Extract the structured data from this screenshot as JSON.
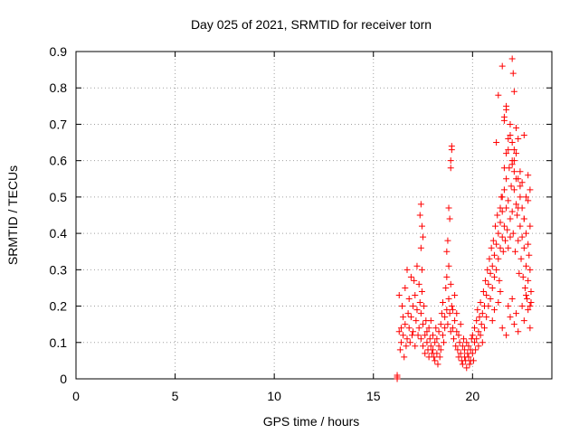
{
  "chart_data": {
    "type": "scatter",
    "title": "Day 025 of 2021, SRMTID for receiver torn",
    "xlabel": "GPS time / hours",
    "ylabel": "SRMTID / TECUs",
    "xlim": [
      0,
      24
    ],
    "ylim": [
      0,
      0.9
    ],
    "xticks": [
      0,
      5,
      10,
      15,
      20
    ],
    "yticks": [
      0,
      0.1,
      0.2,
      0.3,
      0.4,
      0.5,
      0.6,
      0.7,
      0.8,
      0.9
    ],
    "grid": true,
    "marker": "+",
    "color": "#ff0000",
    "series": [
      {
        "name": "SRMTID",
        "x": [
          16.2,
          16.2,
          16.2,
          16.3,
          16.3,
          16.35,
          16.4,
          16.4,
          16.45,
          16.5,
          16.5,
          16.55,
          16.6,
          16.6,
          16.65,
          16.7,
          16.7,
          16.75,
          16.8,
          16.8,
          16.85,
          16.9,
          16.9,
          16.95,
          17.0,
          17.0,
          17.05,
          17.1,
          17.1,
          17.15,
          17.2,
          17.2,
          17.25,
          17.3,
          17.3,
          17.35,
          17.4,
          17.4,
          17.45,
          17.5,
          17.5,
          17.55,
          17.6,
          17.6,
          17.65,
          17.7,
          17.7,
          17.75,
          17.8,
          17.8,
          17.85,
          17.9,
          17.9,
          17.95,
          17.35,
          17.4,
          17.45,
          17.5,
          17.4,
          17.45,
          18.0,
          18.0,
          18.05,
          18.1,
          18.1,
          18.15,
          18.2,
          18.2,
          18.25,
          18.3,
          18.3,
          18.35,
          18.4,
          18.4,
          18.45,
          18.5,
          18.5,
          18.55,
          18.6,
          18.6,
          18.65,
          18.7,
          18.7,
          18.75,
          18.8,
          18.8,
          18.85,
          18.9,
          18.9,
          18.95,
          18.7,
          18.75,
          18.8,
          18.85,
          18.9,
          18.95,
          18.9,
          18.95,
          19.0,
          19.0,
          19.05,
          19.1,
          19.1,
          19.15,
          19.2,
          19.2,
          19.25,
          19.3,
          19.3,
          19.35,
          19.4,
          19.4,
          19.45,
          19.5,
          19.5,
          19.55,
          19.6,
          19.6,
          19.65,
          19.7,
          19.7,
          19.75,
          19.8,
          19.8,
          19.85,
          19.9,
          19.9,
          19.95,
          20.0,
          20.0,
          20.05,
          20.1,
          20.1,
          20.15,
          20.2,
          20.2,
          20.25,
          20.3,
          20.3,
          20.35,
          20.4,
          20.4,
          20.45,
          20.5,
          20.5,
          20.55,
          20.6,
          20.6,
          20.65,
          20.7,
          20.7,
          20.75,
          20.8,
          20.8,
          20.85,
          20.9,
          20.9,
          20.95,
          21.0,
          21.0,
          21.05,
          21.1,
          21.1,
          21.15,
          21.2,
          21.2,
          21.25,
          21.3,
          21.3,
          21.35,
          21.4,
          21.4,
          21.45,
          21.5,
          21.5,
          21.55,
          21.6,
          21.6,
          21.65,
          21.7,
          21.7,
          21.75,
          21.8,
          21.8,
          21.85,
          21.9,
          21.9,
          21.95,
          22.0,
          22.0,
          22.05,
          22.1,
          22.1,
          22.15,
          22.2,
          22.2,
          22.25,
          22.3,
          22.3,
          22.35,
          22.4,
          22.4,
          22.45,
          22.5,
          22.5,
          22.55,
          22.6,
          22.6,
          22.65,
          22.7,
          22.7,
          22.75,
          22.8,
          22.8,
          22.85,
          22.9,
          22.9,
          22.95,
          21.2,
          21.3,
          21.5,
          21.6,
          21.7,
          21.8,
          21.9,
          22.0,
          22.05,
          22.1,
          22.2,
          22.3,
          22.4,
          22.5,
          22.6,
          22.7,
          22.8,
          22.9,
          21.0,
          21.1,
          21.3,
          21.4,
          21.5,
          21.7,
          21.8,
          21.9,
          22.0,
          22.1,
          22.2,
          22.3,
          22.5,
          22.6,
          22.7,
          22.8,
          22.9,
          22.95,
          21.4,
          21.5,
          21.6,
          21.7,
          21.9,
          22.0,
          22.1,
          22.2,
          22.3,
          22.4,
          22.6,
          22.8,
          22.9,
          21.6,
          21.7,
          21.8,
          22.0,
          22.1
        ],
        "y": [
          0.0,
          0.005,
          0.01,
          0.13,
          0.23,
          0.08,
          0.14,
          0.1,
          0.2,
          0.12,
          0.17,
          0.06,
          0.25,
          0.15,
          0.09,
          0.3,
          0.11,
          0.18,
          0.22,
          0.14,
          0.1,
          0.28,
          0.17,
          0.12,
          0.2,
          0.13,
          0.27,
          0.09,
          0.23,
          0.16,
          0.31,
          0.19,
          0.12,
          0.26,
          0.14,
          0.21,
          0.18,
          0.11,
          0.24,
          0.15,
          0.09,
          0.2,
          0.12,
          0.07,
          0.16,
          0.1,
          0.13,
          0.08,
          0.14,
          0.06,
          0.11,
          0.09,
          0.16,
          0.07,
          0.45,
          0.48,
          0.42,
          0.39,
          0.36,
          0.3,
          0.08,
          0.12,
          0.06,
          0.1,
          0.05,
          0.14,
          0.07,
          0.11,
          0.04,
          0.09,
          0.13,
          0.06,
          0.15,
          0.08,
          0.18,
          0.12,
          0.21,
          0.1,
          0.17,
          0.14,
          0.25,
          0.19,
          0.28,
          0.15,
          0.22,
          0.31,
          0.18,
          0.26,
          0.13,
          0.2,
          0.35,
          0.38,
          0.47,
          0.44,
          0.58,
          0.63,
          0.6,
          0.64,
          0.14,
          0.19,
          0.11,
          0.16,
          0.23,
          0.09,
          0.13,
          0.18,
          0.08,
          0.12,
          0.06,
          0.1,
          0.15,
          0.07,
          0.05,
          0.09,
          0.04,
          0.11,
          0.06,
          0.08,
          0.05,
          0.1,
          0.03,
          0.07,
          0.06,
          0.09,
          0.04,
          0.08,
          0.05,
          0.11,
          0.07,
          0.12,
          0.05,
          0.1,
          0.14,
          0.08,
          0.16,
          0.11,
          0.19,
          0.13,
          0.09,
          0.17,
          0.12,
          0.21,
          0.15,
          0.1,
          0.18,
          0.24,
          0.14,
          0.2,
          0.27,
          0.17,
          0.23,
          0.3,
          0.2,
          0.26,
          0.33,
          0.22,
          0.29,
          0.36,
          0.25,
          0.31,
          0.38,
          0.28,
          0.34,
          0.42,
          0.3,
          0.37,
          0.45,
          0.33,
          0.4,
          0.27,
          0.36,
          0.43,
          0.5,
          0.39,
          0.46,
          0.35,
          0.42,
          0.52,
          0.38,
          0.47,
          0.55,
          0.41,
          0.36,
          0.49,
          0.58,
          0.44,
          0.39,
          0.53,
          0.46,
          0.6,
          0.4,
          0.52,
          0.57,
          0.35,
          0.48,
          0.62,
          0.45,
          0.38,
          0.55,
          0.29,
          0.42,
          0.5,
          0.33,
          0.47,
          0.39,
          0.28,
          0.44,
          0.36,
          0.25,
          0.4,
          0.31,
          0.22,
          0.37,
          0.27,
          0.34,
          0.2,
          0.3,
          0.24,
          0.65,
          0.78,
          0.86,
          0.72,
          0.75,
          0.63,
          0.67,
          0.88,
          0.84,
          0.79,
          0.69,
          0.66,
          0.57,
          0.54,
          0.67,
          0.5,
          0.56,
          0.42,
          0.16,
          0.19,
          0.21,
          0.24,
          0.14,
          0.12,
          0.2,
          0.17,
          0.22,
          0.15,
          0.18,
          0.13,
          0.2,
          0.16,
          0.23,
          0.19,
          0.14,
          0.21,
          0.47,
          0.5,
          0.58,
          0.62,
          0.7,
          0.65,
          0.6,
          0.55,
          0.47,
          0.53,
          0.44,
          0.49,
          0.52,
          0.71,
          0.74,
          0.66,
          0.59,
          0.63
        ]
      }
    ]
  }
}
